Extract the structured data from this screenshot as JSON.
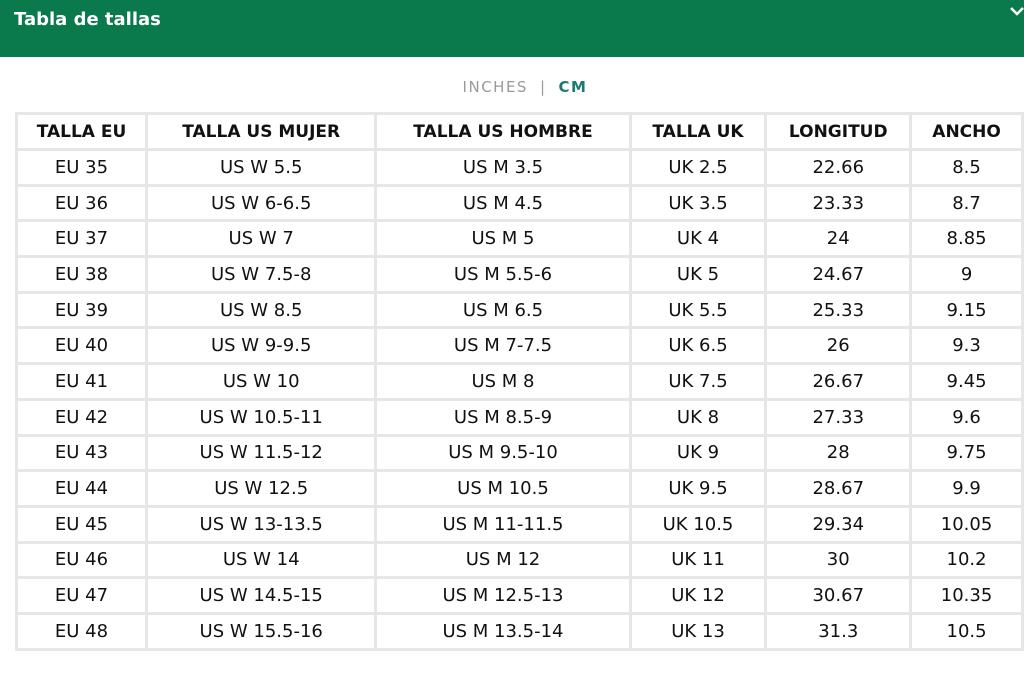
{
  "header": {
    "title": "Tabla de tallas"
  },
  "unit_toggle": {
    "options": [
      "INCHES",
      "CM"
    ],
    "separator": "|",
    "active": "CM"
  },
  "table": {
    "columns": [
      "TALLA EU",
      "TALLA US MUJER",
      "TALLA US HOMBRE",
      "TALLA UK",
      "LONGITUD",
      "ANCHO"
    ],
    "rows": [
      [
        "EU 35",
        "US W 5.5",
        "US M 3.5",
        "UK 2.5",
        "22.66",
        "8.5"
      ],
      [
        "EU 36",
        "US W 6-6.5",
        "US M 4.5",
        "UK 3.5",
        "23.33",
        "8.7"
      ],
      [
        "EU 37",
        "US W 7",
        "US M 5",
        "UK 4",
        "24",
        "8.85"
      ],
      [
        "EU 38",
        "US W 7.5-8",
        "US M 5.5-6",
        "UK 5",
        "24.67",
        "9"
      ],
      [
        "EU 39",
        "US W 8.5",
        "US M 6.5",
        "UK 5.5",
        "25.33",
        "9.15"
      ],
      [
        "EU 40",
        "US W 9-9.5",
        "US M 7-7.5",
        "UK 6.5",
        "26",
        "9.3"
      ],
      [
        "EU 41",
        "US W 10",
        "US M 8",
        "UK 7.5",
        "26.67",
        "9.45"
      ],
      [
        "EU 42",
        "US W 10.5-11",
        "US M 8.5-9",
        "UK 8",
        "27.33",
        "9.6"
      ],
      [
        "EU 43",
        "US W 11.5-12",
        "US M 9.5-10",
        "UK 9",
        "28",
        "9.75"
      ],
      [
        "EU 44",
        "US W 12.5",
        "US M 10.5",
        "UK 9.5",
        "28.67",
        "9.9"
      ],
      [
        "EU 45",
        "US W 13-13.5",
        "US M 11-11.5",
        "UK 10.5",
        "29.34",
        "10.05"
      ],
      [
        "EU 46",
        "US W 14",
        "US M 12",
        "UK 11",
        "30",
        "10.2"
      ],
      [
        "EU 47",
        "US W 14.5-15",
        "US M 12.5-13",
        "UK 12",
        "30.67",
        "10.35"
      ],
      [
        "EU 48",
        "US W 15.5-16",
        "US M 13.5-14",
        "UK 13",
        "31.3",
        "10.5"
      ]
    ]
  }
}
